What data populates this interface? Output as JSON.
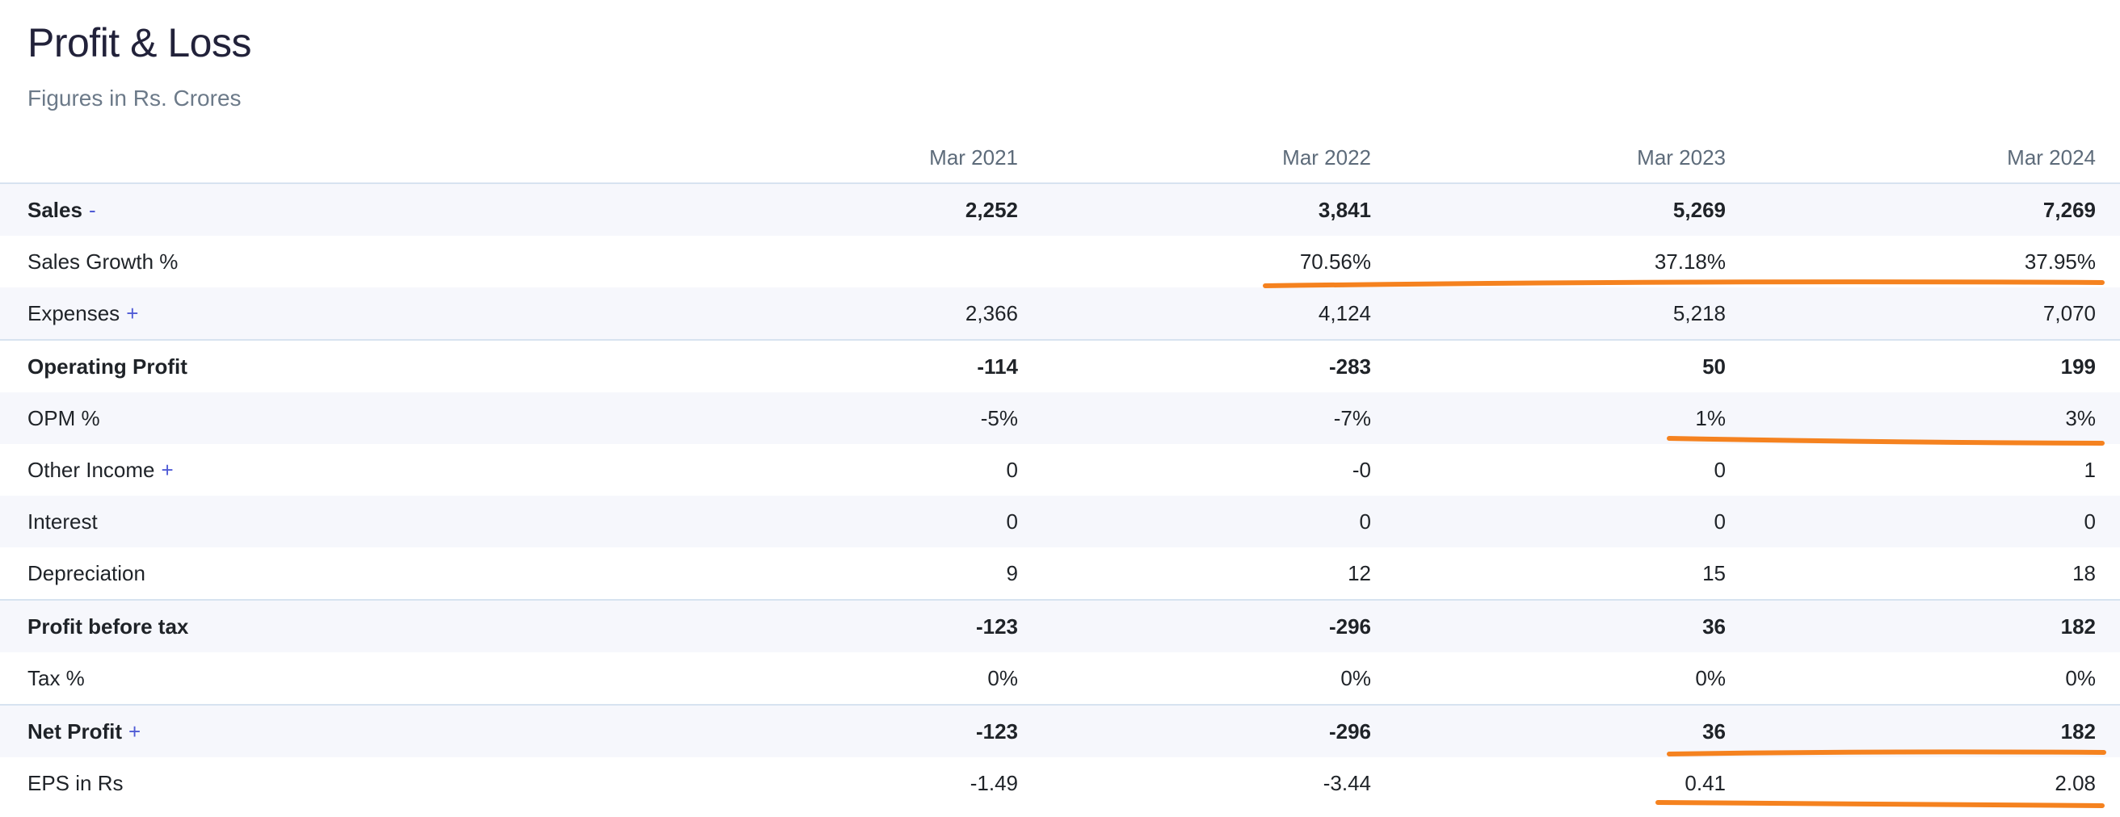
{
  "header": {
    "title": "Profit & Loss",
    "subtitle": "Figures in Rs. Crores"
  },
  "table": {
    "columns": [
      "Mar 2021",
      "Mar 2022",
      "Mar 2023",
      "Mar 2024"
    ],
    "rows": [
      {
        "label": "Sales",
        "toggle": "-",
        "values": [
          "2,252",
          "3,841",
          "5,269",
          "7,269"
        ]
      },
      {
        "label": "Sales Growth %",
        "toggle": "",
        "values": [
          "",
          "70.56%",
          "37.18%",
          "37.95%"
        ]
      },
      {
        "label": "Expenses",
        "toggle": "+",
        "values": [
          "2,366",
          "4,124",
          "5,218",
          "7,070"
        ]
      },
      {
        "label": "Operating Profit",
        "toggle": "",
        "values": [
          "-114",
          "-283",
          "50",
          "199"
        ]
      },
      {
        "label": "OPM %",
        "toggle": "",
        "values": [
          "-5%",
          "-7%",
          "1%",
          "3%"
        ]
      },
      {
        "label": "Other Income",
        "toggle": "+",
        "values": [
          "0",
          "-0",
          "0",
          "1"
        ]
      },
      {
        "label": "Interest",
        "toggle": "",
        "values": [
          "0",
          "0",
          "0",
          "0"
        ]
      },
      {
        "label": "Depreciation",
        "toggle": "",
        "values": [
          "9",
          "12",
          "15",
          "18"
        ]
      },
      {
        "label": "Profit before tax",
        "toggle": "",
        "values": [
          "-123",
          "-296",
          "36",
          "182"
        ]
      },
      {
        "label": "Tax %",
        "toggle": "",
        "values": [
          "0%",
          "0%",
          "0%",
          "0%"
        ]
      },
      {
        "label": "Net Profit",
        "toggle": "+",
        "values": [
          "-123",
          "-296",
          "36",
          "182"
        ]
      },
      {
        "label": "EPS in Rs",
        "toggle": "",
        "values": [
          "-1.49",
          "-3.44",
          "0.41",
          "2.08"
        ]
      }
    ]
  },
  "annotation_color": "#f5821f"
}
